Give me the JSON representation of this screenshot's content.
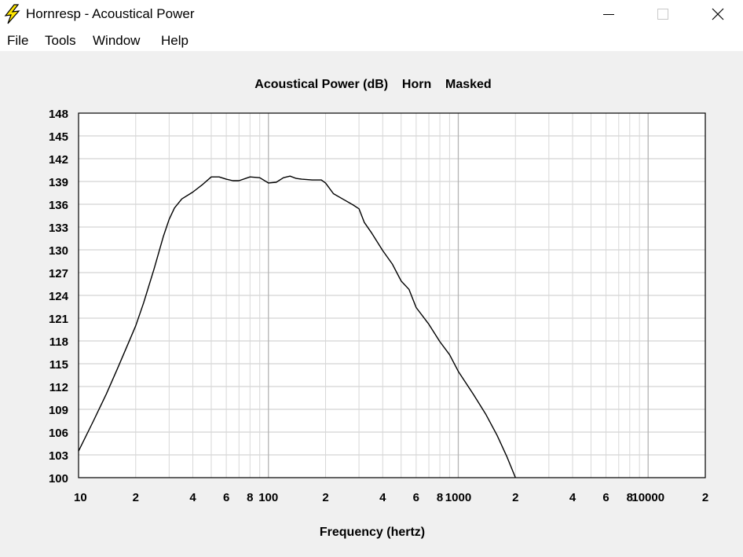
{
  "window": {
    "title": "Hornresp - Acoustical Power",
    "icon": "lightning-bolt-icon"
  },
  "menu": {
    "items": [
      {
        "label": "File"
      },
      {
        "label": "Tools"
      },
      {
        "label": "Window"
      },
      {
        "label": "Help"
      }
    ]
  },
  "colors": {
    "background": "#f0f0f0",
    "plot_background": "#ffffff",
    "grid": "#c8c8c8",
    "curve": "#000000",
    "icon_yellow": "#ffe600"
  },
  "chart_data": {
    "type": "line",
    "title": "Acoustical Power (dB)    Horn    Masked",
    "xlabel": "Frequency (hertz)",
    "ylabel": "",
    "x_scale": "log",
    "xlim": [
      10,
      20000
    ],
    "ylim": [
      100,
      148
    ],
    "grid": true,
    "legend": "none",
    "y_ticks": [
      "148",
      "145",
      "142",
      "139",
      "136",
      "133",
      "130",
      "127",
      "124",
      "121",
      "118",
      "115",
      "112",
      "109",
      "106",
      "103",
      "100"
    ],
    "x_ticks": [
      {
        "value": 10,
        "label": "10"
      },
      {
        "value": 20,
        "label": "2"
      },
      {
        "value": 40,
        "label": "4"
      },
      {
        "value": 60,
        "label": "6"
      },
      {
        "value": 80,
        "label": "8"
      },
      {
        "value": 100,
        "label": "100"
      },
      {
        "value": 200,
        "label": "2"
      },
      {
        "value": 400,
        "label": "4"
      },
      {
        "value": 600,
        "label": "6"
      },
      {
        "value": 800,
        "label": "8"
      },
      {
        "value": 1000,
        "label": "1000"
      },
      {
        "value": 2000,
        "label": "2"
      },
      {
        "value": 4000,
        "label": "4"
      },
      {
        "value": 6000,
        "label": "6"
      },
      {
        "value": 8000,
        "label": "8"
      },
      {
        "value": 10000,
        "label": "10000"
      },
      {
        "value": 20000,
        "label": "2"
      }
    ],
    "series": [
      {
        "x": [
          10,
          12,
          14,
          16,
          18,
          20,
          22,
          25,
          28,
          30,
          32,
          35,
          40,
          45,
          50,
          55,
          60,
          65,
          70,
          80,
          90,
          100,
          110,
          120,
          130,
          140,
          150,
          170,
          190,
          200,
          220,
          250,
          280,
          300,
          320,
          350,
          400,
          450,
          500,
          550,
          600,
          700,
          800,
          900,
          1000,
          1200,
          1400,
          1600,
          1800,
          2000
        ],
        "y": [
          103.5,
          107.5,
          111.0,
          114.3,
          117.3,
          120.0,
          123.0,
          127.5,
          131.8,
          134.0,
          135.5,
          136.7,
          137.6,
          138.6,
          139.6,
          139.6,
          139.3,
          139.1,
          139.1,
          139.6,
          139.5,
          138.8,
          138.9,
          139.5,
          139.7,
          139.4,
          139.3,
          139.2,
          139.2,
          138.8,
          137.4,
          136.6,
          135.9,
          135.4,
          133.6,
          132.2,
          129.9,
          128.1,
          125.9,
          124.8,
          122.4,
          120.2,
          117.9,
          116.2,
          114.0,
          111.0,
          108.3,
          105.6,
          102.8,
          100.0
        ]
      }
    ]
  }
}
